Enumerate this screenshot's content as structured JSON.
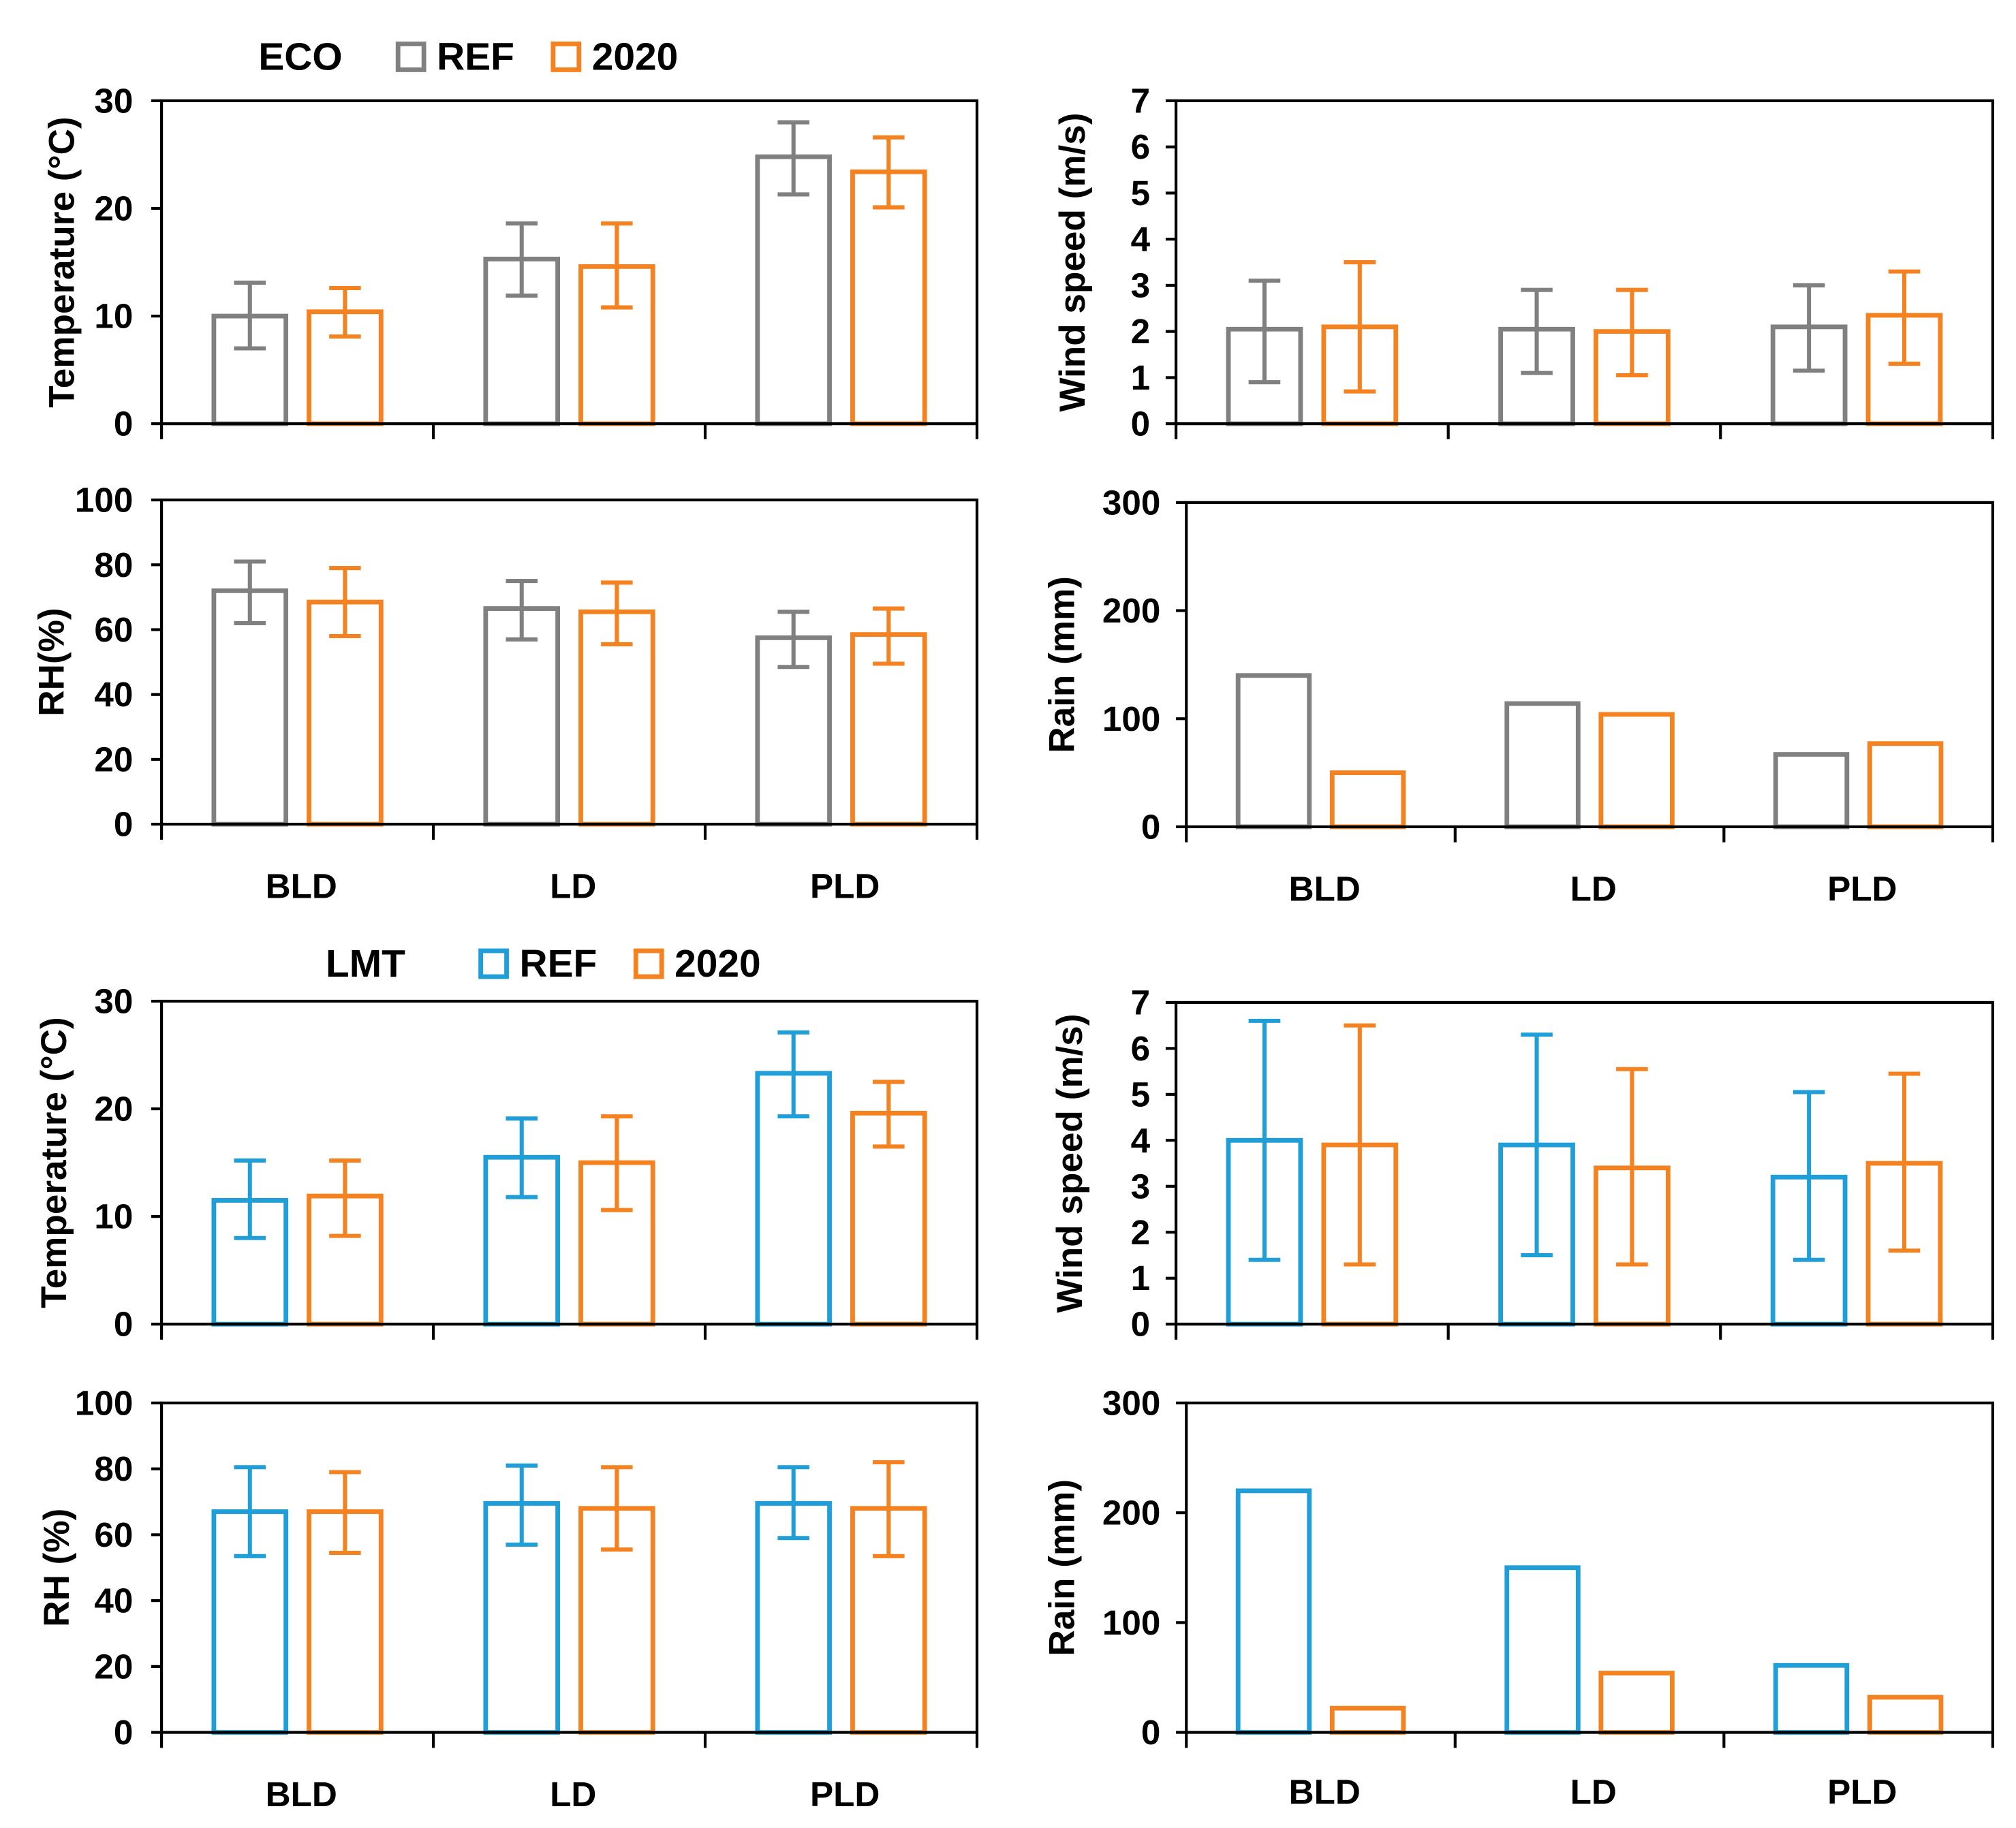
{
  "figure": {
    "categories": [
      "BLD",
      "LD",
      "PLD"
    ],
    "colors": {
      "ECO_REF": "#808080",
      "LMT_REF": "#1f9ed8",
      "y2020": "#f58220",
      "axis": "#000000"
    }
  },
  "groups": [
    {
      "site": "ECO",
      "legend": [
        {
          "label": "REF",
          "color": "#808080"
        },
        {
          "label": "2020",
          "color": "#f58220"
        }
      ]
    },
    {
      "site": "LMT",
      "legend": [
        {
          "label": "REF",
          "color": "#1f9ed8"
        },
        {
          "label": "2020",
          "color": "#f58220"
        }
      ]
    }
  ],
  "chart_data": [
    {
      "id": "eco-temp",
      "type": "bar",
      "site": "ECO",
      "ylabel": "Temperature (°C)",
      "categories": [
        "BLD",
        "LD",
        "PLD"
      ],
      "ylim": [
        0,
        30
      ],
      "yticks": [
        0,
        10,
        20,
        30
      ],
      "series": [
        {
          "name": "REF",
          "color": "#808080",
          "values": [
            10,
            15.3,
            24.8
          ],
          "err_low": [
            7,
            11.9,
            21.3
          ],
          "err_high": [
            13.1,
            18.6,
            28
          ]
        },
        {
          "name": "2020",
          "color": "#f58220",
          "values": [
            10.4,
            14.6,
            23.4
          ],
          "err_low": [
            8.1,
            10.8,
            20.1
          ],
          "err_high": [
            12.6,
            18.6,
            26.6
          ]
        }
      ]
    },
    {
      "id": "eco-wind",
      "type": "bar",
      "site": "ECO",
      "ylabel": "Wind speed (m/s)",
      "categories": [
        "BLD",
        "LD",
        "PLD"
      ],
      "ylim": [
        0,
        7
      ],
      "yticks": [
        0,
        1,
        2,
        3,
        4,
        5,
        6,
        7
      ],
      "series": [
        {
          "name": "REF",
          "color": "#808080",
          "values": [
            2.05,
            2.05,
            2.1
          ],
          "err_low": [
            0.9,
            1.1,
            1.15
          ],
          "err_high": [
            3.1,
            2.9,
            3
          ]
        },
        {
          "name": "2020",
          "color": "#f58220",
          "values": [
            2.1,
            2,
            2.35
          ],
          "err_low": [
            0.7,
            1.05,
            1.3
          ],
          "err_high": [
            3.5,
            2.9,
            3.3
          ]
        }
      ]
    },
    {
      "id": "eco-rh",
      "type": "bar",
      "site": "ECO",
      "ylabel": "RH(%)",
      "categories": [
        "BLD",
        "LD",
        "PLD"
      ],
      "ylim": [
        0,
        100
      ],
      "yticks": [
        0,
        20,
        40,
        60,
        80,
        100
      ],
      "series": [
        {
          "name": "REF",
          "color": "#808080",
          "values": [
            72,
            66.5,
            57.5
          ],
          "err_low": [
            62,
            57,
            48.5
          ],
          "err_high": [
            81,
            75,
            65.5
          ]
        },
        {
          "name": "2020",
          "color": "#f58220",
          "values": [
            68.5,
            65.5,
            58.5
          ],
          "err_low": [
            58,
            55.5,
            49.5
          ],
          "err_high": [
            79,
            74.5,
            66.5
          ]
        }
      ]
    },
    {
      "id": "eco-rain",
      "type": "bar",
      "site": "ECO",
      "ylabel": "Rain (mm)",
      "categories": [
        "BLD",
        "LD",
        "PLD"
      ],
      "ylim": [
        0,
        300
      ],
      "yticks": [
        0,
        100,
        200,
        300
      ],
      "series": [
        {
          "name": "REF",
          "color": "#808080",
          "values": [
            140,
            114,
            67
          ]
        },
        {
          "name": "2020",
          "color": "#f58220",
          "values": [
            50,
            104,
            77
          ]
        }
      ]
    },
    {
      "id": "lmt-temp",
      "type": "bar",
      "site": "LMT",
      "ylabel": "Temperature (°C)",
      "categories": [
        "BLD",
        "LD",
        "PLD"
      ],
      "ylim": [
        0,
        30
      ],
      "yticks": [
        0,
        10,
        20,
        30
      ],
      "series": [
        {
          "name": "REF",
          "color": "#1f9ed8",
          "values": [
            11.5,
            15.5,
            23.3
          ],
          "err_low": [
            8,
            11.8,
            19.3
          ],
          "err_high": [
            15.2,
            19.1,
            27.1
          ]
        },
        {
          "name": "2020",
          "color": "#f58220",
          "values": [
            11.9,
            15,
            19.6
          ],
          "err_low": [
            8.2,
            10.6,
            16.5
          ],
          "err_high": [
            15.2,
            19.3,
            22.5
          ]
        }
      ]
    },
    {
      "id": "lmt-wind",
      "type": "bar",
      "site": "LMT",
      "ylabel": "Wind speed (m/s)",
      "categories": [
        "BLD",
        "LD",
        "PLD"
      ],
      "ylim": [
        0,
        7
      ],
      "yticks": [
        0,
        1,
        2,
        3,
        4,
        5,
        6,
        7
      ],
      "series": [
        {
          "name": "REF",
          "color": "#1f9ed8",
          "values": [
            4,
            3.9,
            3.2
          ],
          "err_low": [
            1.4,
            1.5,
            1.4
          ],
          "err_high": [
            6.6,
            6.3,
            5.05
          ]
        },
        {
          "name": "2020",
          "color": "#f58220",
          "values": [
            3.9,
            3.4,
            3.5
          ],
          "err_low": [
            1.3,
            1.3,
            1.6
          ],
          "err_high": [
            6.5,
            5.55,
            5.45
          ]
        }
      ]
    },
    {
      "id": "lmt-rh",
      "type": "bar",
      "site": "LMT",
      "ylabel": "RH (%)",
      "categories": [
        "BLD",
        "LD",
        "PLD"
      ],
      "ylim": [
        0,
        100
      ],
      "yticks": [
        0,
        20,
        40,
        60,
        80,
        100
      ],
      "series": [
        {
          "name": "REF",
          "color": "#1f9ed8",
          "values": [
            67,
            69.5,
            69.5
          ],
          "err_low": [
            53.5,
            57,
            59
          ],
          "err_high": [
            80.5,
            81,
            80.5
          ]
        },
        {
          "name": "2020",
          "color": "#f58220",
          "values": [
            67,
            68,
            68
          ],
          "err_low": [
            54.5,
            55.5,
            53.5
          ],
          "err_high": [
            79,
            80.5,
            82
          ]
        }
      ]
    },
    {
      "id": "lmt-rain",
      "type": "bar",
      "site": "LMT",
      "ylabel": "Rain (mm)",
      "categories": [
        "BLD",
        "LD",
        "PLD"
      ],
      "ylim": [
        0,
        300
      ],
      "yticks": [
        0,
        100,
        200,
        300
      ],
      "series": [
        {
          "name": "REF",
          "color": "#1f9ed8",
          "values": [
            220,
            150,
            61
          ]
        },
        {
          "name": "2020",
          "color": "#f58220",
          "values": [
            22,
            54,
            32
          ]
        }
      ]
    }
  ]
}
